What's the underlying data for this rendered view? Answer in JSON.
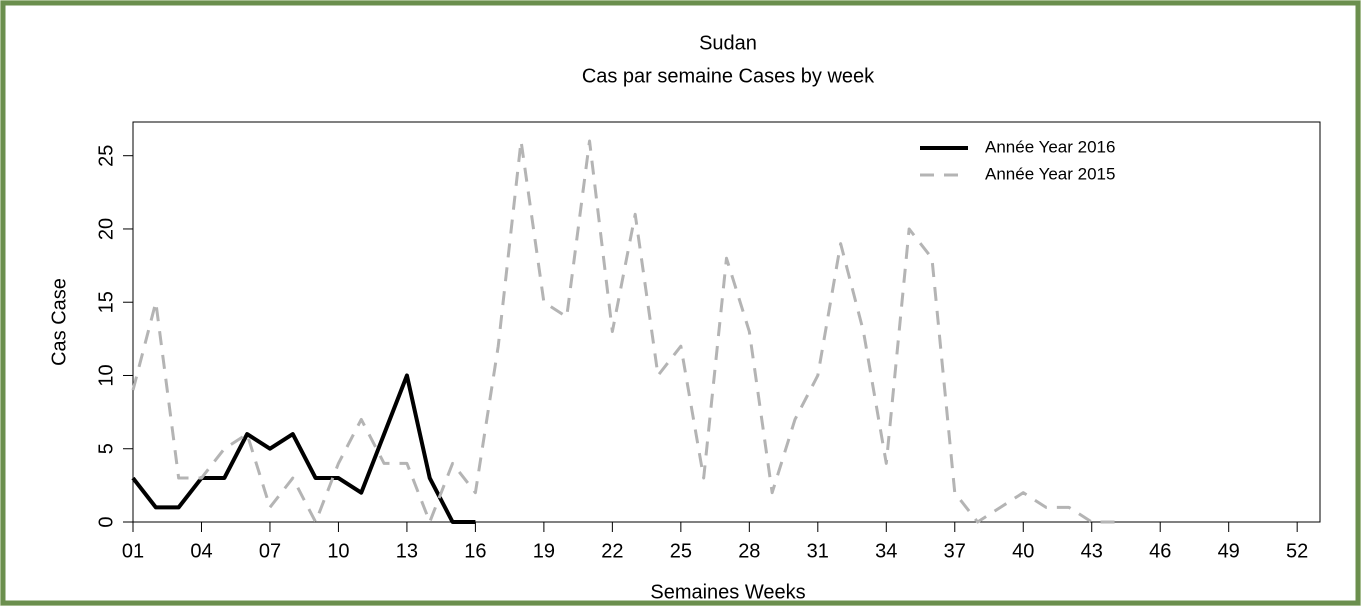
{
  "chart_data": {
    "type": "line",
    "title": "Sudan",
    "subtitle": "Cas par semaine Cases by week",
    "ylabel": "Cas Case",
    "xlabel": "Semaines Weeks",
    "x": [
      1,
      2,
      3,
      4,
      5,
      6,
      7,
      8,
      9,
      10,
      11,
      12,
      13,
      14,
      15,
      16,
      17,
      18,
      19,
      20,
      21,
      22,
      23,
      24,
      25,
      26,
      27,
      28,
      29,
      30,
      31,
      32,
      33,
      34,
      35,
      36,
      37,
      38,
      39,
      40,
      41,
      42,
      43,
      44,
      45,
      46,
      47,
      48,
      49,
      50,
      51,
      52
    ],
    "series": [
      {
        "name": "Année Year 2016",
        "color": "#000000",
        "dash": false,
        "values": [
          3,
          1,
          1,
          3,
          3,
          6,
          5,
          6,
          3,
          3,
          2,
          6,
          10,
          3,
          0,
          0,
          null,
          null,
          null,
          null,
          null,
          null,
          null,
          null,
          null,
          null,
          null,
          null,
          null,
          null,
          null,
          null,
          null,
          null,
          null,
          null,
          null,
          null,
          null,
          null,
          null,
          null,
          null,
          null,
          null,
          null,
          null,
          null,
          null,
          null,
          null,
          null
        ]
      },
      {
        "name": "Année Year 2015",
        "color": "#b4b4b4",
        "dash": true,
        "values": [
          9,
          15,
          3,
          3,
          5,
          6,
          1,
          3,
          0,
          4,
          7,
          4,
          4,
          0,
          4,
          2,
          12,
          26,
          15,
          14,
          26,
          13,
          21,
          10,
          12,
          3,
          18,
          13,
          2,
          7,
          10,
          19,
          13,
          4,
          20,
          18,
          2,
          0,
          1,
          2,
          1,
          1,
          0,
          0,
          null,
          null,
          null,
          null,
          null,
          null,
          null,
          null
        ]
      }
    ],
    "xlim": [
      1,
      53
    ],
    "ylim": [
      0,
      27.3
    ],
    "xticks": [
      {
        "value": 1,
        "label": "01"
      },
      {
        "value": 4,
        "label": "04"
      },
      {
        "value": 7,
        "label": "07"
      },
      10,
      13,
      16,
      19,
      22,
      25,
      28,
      31,
      34,
      37,
      40,
      43,
      46,
      49,
      52
    ],
    "yticks": [
      0,
      5,
      10,
      15,
      20,
      25
    ],
    "legend": "top-right"
  }
}
